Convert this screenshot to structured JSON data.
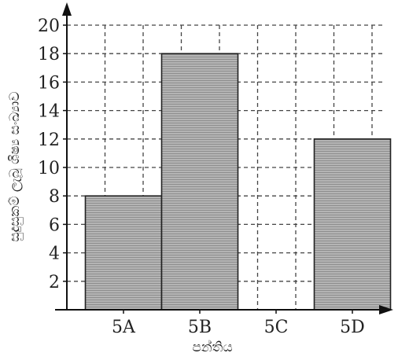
{
  "chart_data": {
    "type": "bar",
    "categories": [
      "5A",
      "5B",
      "5C",
      "5D"
    ],
    "values": [
      8,
      18,
      0,
      12
    ],
    "title": "",
    "xlabel": "පන්තිය",
    "ylabel": "සුදුසුකම් ලැබූ ශිෂ්‍ය සංඛ්‍යාව",
    "ylim": [
      0,
      20
    ],
    "yticks": [
      2,
      4,
      6,
      8,
      10,
      12,
      14,
      16,
      18,
      20
    ],
    "grid": true,
    "legend": "none",
    "colors": {
      "bar_fill": "#a9a9a9",
      "bar_stroke": "#222222",
      "grid": "#444444",
      "axis": "#111111"
    }
  }
}
